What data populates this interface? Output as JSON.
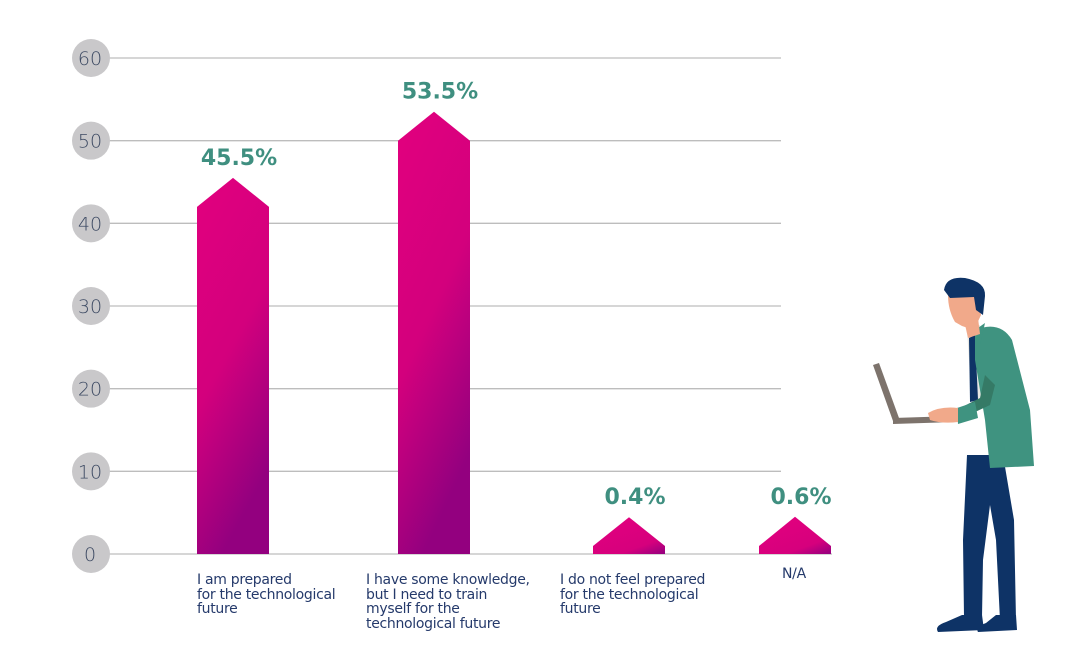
{
  "chart_data": {
    "type": "bar",
    "title": "",
    "xlabel": "",
    "ylabel": "",
    "ylim": [
      0,
      60
    ],
    "yticks": [
      0,
      10,
      20,
      30,
      40,
      50,
      60
    ],
    "grid": true,
    "categories": [
      "I am prepared\nfor the technological\nfuture",
      "I have some knowledge,\nbut I need to train\nmyself for the\ntechnological future",
      "I do not feel prepared\nfor the technological\nfuture",
      "N/A"
    ],
    "values": [
      45.5,
      53.5,
      0.4,
      0.6
    ],
    "value_labels": [
      "45.5%",
      "53.5%",
      "0.4%",
      "0.6%"
    ],
    "unit": "%"
  },
  "colors": {
    "bar_top": "#e2007e",
    "bar_bottom": "#93007f",
    "value_label": "#3f8f80",
    "tick_circle": "#c9c8ca",
    "tick_text": "#3d4a63",
    "gridline": "#bdbdbd",
    "category_text": "#253a6b"
  },
  "illustration": {
    "name": "person-with-laptop"
  }
}
